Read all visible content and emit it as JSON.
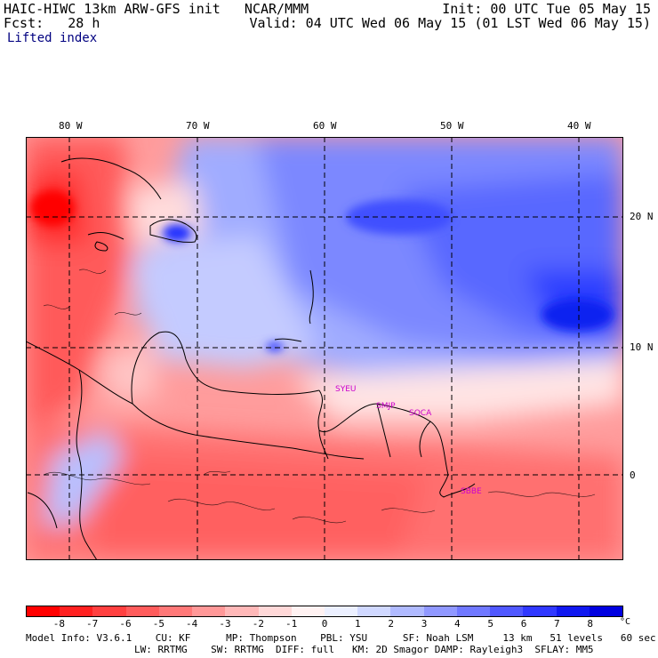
{
  "header": {
    "title": "HAIC-HIWC 13km ARW-GFS init   NCAR/MMM",
    "forecast": "Fcst:   28 h",
    "init": "Init: 00 UTC Tue 05 May 15",
    "valid": "Valid: 04 UTC Wed 06 May 15 (01 LST Wed 06 May 15)",
    "field": "Lifted index"
  },
  "map": {
    "lon_labels": [
      "80 W",
      "70 W",
      "60 W",
      "50 W",
      "40 W"
    ],
    "lat_labels": [
      "20 N",
      "10 N",
      "0"
    ],
    "stations": [
      "SYEU",
      "SMJP",
      "SOCA",
      "SBBE"
    ]
  },
  "colorbar": {
    "ticks": [
      "-8",
      "-7",
      "-6",
      "-5",
      "-4",
      "-3",
      "-2",
      "-1",
      "0",
      "1",
      "2",
      "3",
      "4",
      "5",
      "6",
      "7",
      "8"
    ],
    "unit": "°C",
    "colors": [
      "#ff0000",
      "#ff2020",
      "#ff4040",
      "#ff5c5c",
      "#ff7878",
      "#ff9898",
      "#ffb8b8",
      "#ffd8d8",
      "#fff2f2",
      "#ecf0ff",
      "#d0d8ff",
      "#b0baff",
      "#9098ff",
      "#7078ff",
      "#5058ff",
      "#3038ff",
      "#1018f0",
      "#0000e0"
    ]
  },
  "model_info": {
    "line1": "Model Info: V3.6.1    CU: KF      MP: Thompson    PBL: YSU      SF: Noah LSM     13 km   51 levels   60 sec",
    "line2": "LW: RRTMG    SW: RRTMG  DIFF: full   KM: 2D Smagor DAMP: Rayleigh3  SFLAY: MM5"
  }
}
